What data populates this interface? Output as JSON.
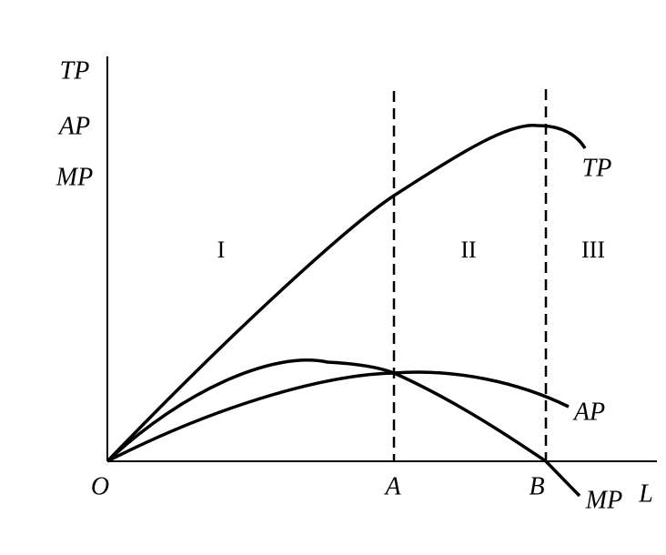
{
  "axis_labels": {
    "y": [
      "TP",
      "AP",
      "MP"
    ],
    "x": "L",
    "origin": "O"
  },
  "points": [
    "A",
    "B"
  ],
  "curves": [
    "TP",
    "AP",
    "MP"
  ],
  "regions": [
    "I",
    "II",
    "III"
  ]
}
